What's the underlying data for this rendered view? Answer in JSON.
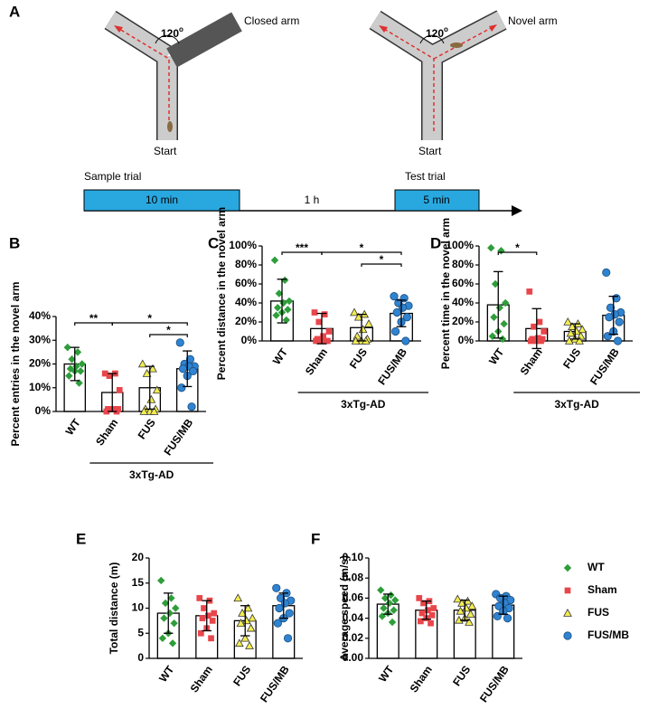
{
  "diagram": {
    "panel": "A",
    "angle": [
      "120",
      "o"
    ],
    "closed_arm": "Closed arm",
    "novel_arm": "Novel arm",
    "start": "Start",
    "sample_trial": "Sample trial",
    "test_trial": "Test trial",
    "sample_duration": "10 min",
    "interval": "1 h",
    "test_duration": "5 min"
  },
  "legend": [
    {
      "name": "WT",
      "color": "#2e9e3a",
      "marker": "diamond"
    },
    {
      "name": "Sham",
      "color": "#e8464b",
      "marker": "square"
    },
    {
      "name": "FUS",
      "color": "#f2ec50",
      "marker": "triangle"
    },
    {
      "name": "FUS/MB",
      "color": "#2f83d1",
      "marker": "circle"
    }
  ],
  "chart_data": [
    {
      "type": "bar",
      "panel": "B",
      "ylabel": "Percent entries in the novel arm",
      "group_label": "3xTg-AD",
      "categories": [
        "WT",
        "Sham",
        "FUS",
        "FUS/MB"
      ],
      "values": [
        20,
        8,
        10,
        18
      ],
      "errors": [
        7,
        8,
        9,
        7.5
      ],
      "points": [
        [
          27,
          25,
          22,
          20,
          19,
          18,
          17,
          17,
          15,
          12
        ],
        [
          16,
          16,
          15,
          9,
          1,
          1,
          1,
          1,
          0,
          0
        ],
        [
          20,
          18,
          16,
          9,
          5,
          1,
          1,
          0,
          0,
          0
        ],
        [
          29,
          22,
          20,
          19,
          19,
          18,
          17,
          15,
          10,
          2
        ]
      ],
      "ylim": [
        0,
        40
      ],
      "yticks": [
        {
          "value": 0,
          "label": "0%"
        },
        {
          "value": 10,
          "label": "10%"
        },
        {
          "value": 20,
          "label": "20%"
        },
        {
          "value": 30,
          "label": "30%"
        },
        {
          "value": 40,
          "label": "40%"
        }
      ],
      "significance": [
        {
          "from": 0,
          "to": 1,
          "label": "**"
        },
        {
          "from": 1,
          "to": 3,
          "label": "*"
        },
        {
          "from": 2,
          "to": 3,
          "label": "*"
        }
      ]
    },
    {
      "type": "bar",
      "panel": "C",
      "ylabel": "Percent distance in the novel arm",
      "group_label": "3xTg-AD",
      "categories": [
        "WT",
        "Sham",
        "FUS",
        "FUS/MB"
      ],
      "values": [
        42,
        13,
        14,
        29
      ],
      "errors": [
        23,
        16,
        14,
        14
      ],
      "points": [
        [
          85,
          64,
          50,
          42,
          40,
          35,
          33,
          30,
          27,
          22
        ],
        [
          30,
          28,
          20,
          10,
          5,
          2,
          0,
          0,
          0,
          0
        ],
        [
          30,
          28,
          25,
          18,
          12,
          5,
          2,
          0,
          0,
          0
        ],
        [
          47,
          45,
          40,
          37,
          35,
          30,
          25,
          20,
          10,
          0
        ]
      ],
      "ylim": [
        0,
        100
      ],
      "yticks": [
        {
          "value": 0,
          "label": "0%"
        },
        {
          "value": 20,
          "label": "20%"
        },
        {
          "value": 40,
          "label": "40%"
        },
        {
          "value": 60,
          "label": "60%"
        },
        {
          "value": 80,
          "label": "80%"
        },
        {
          "value": 100,
          "label": "100%"
        }
      ],
      "significance": [
        {
          "from": 0,
          "to": 1,
          "label": "***"
        },
        {
          "from": 1,
          "to": 3,
          "label": "*"
        },
        {
          "from": 2,
          "to": 3,
          "label": "*"
        }
      ]
    },
    {
      "type": "bar",
      "panel": "D",
      "ylabel": "Percent time in the novel arm",
      "group_label": "3xTg-AD",
      "categories": [
        "WT",
        "Sham",
        "FUS",
        "FUS/MB"
      ],
      "values": [
        38,
        13,
        10,
        27
      ],
      "errors": [
        35,
        21,
        8,
        20
      ],
      "points": [
        [
          98,
          95,
          60,
          40,
          35,
          25,
          18,
          10,
          5,
          2
        ],
        [
          52,
          20,
          15,
          10,
          3,
          2,
          2,
          0,
          0,
          0
        ],
        [
          20,
          18,
          15,
          12,
          10,
          8,
          5,
          2,
          0,
          0
        ],
        [
          72,
          45,
          35,
          30,
          28,
          25,
          20,
          10,
          5,
          0
        ]
      ],
      "ylim": [
        0,
        100
      ],
      "yticks": [
        {
          "value": 0,
          "label": "0%"
        },
        {
          "value": 20,
          "label": "20%"
        },
        {
          "value": 40,
          "label": "40%"
        },
        {
          "value": 60,
          "label": "60%"
        },
        {
          "value": 80,
          "label": "80%"
        },
        {
          "value": 100,
          "label": "100%"
        }
      ],
      "significance": [
        {
          "from": 0,
          "to": 1,
          "label": "*"
        }
      ]
    },
    {
      "type": "bar",
      "panel": "E",
      "ylabel": "Total distance (m)",
      "group_label": "3xTg-AD",
      "categories": [
        "WT",
        "Sham",
        "FUS",
        "FUS/MB"
      ],
      "values": [
        9,
        8.5,
        7.5,
        10.5
      ],
      "errors": [
        4,
        3,
        3,
        2.5
      ],
      "points": [
        [
          15.5,
          12,
          11,
          10,
          9,
          8,
          7,
          5,
          4,
          3
        ],
        [
          12,
          11.5,
          10,
          9,
          8.5,
          8,
          7.5,
          6,
          5,
          4
        ],
        [
          12,
          10,
          9,
          8,
          7.5,
          7,
          6,
          4,
          3,
          2.5
        ],
        [
          14,
          13,
          12,
          11.5,
          11,
          10,
          9,
          8,
          7,
          4
        ]
      ],
      "ylim": [
        0,
        20
      ],
      "yticks": [
        0,
        5,
        10,
        15,
        20
      ],
      "significance": []
    },
    {
      "type": "bar",
      "panel": "F",
      "ylabel": "Average speed (m/s)",
      "group_label": "3xTg-AD",
      "categories": [
        "WT",
        "Sham",
        "FUS",
        "FUS/MB"
      ],
      "values": [
        0.054,
        0.048,
        0.048,
        0.053
      ],
      "errors": [
        0.01,
        0.009,
        0.01,
        0.009
      ],
      "points": [
        [
          0.068,
          0.063,
          0.06,
          0.058,
          0.055,
          0.05,
          0.048,
          0.045,
          0.042,
          0.036
        ],
        [
          0.06,
          0.057,
          0.055,
          0.05,
          0.048,
          0.045,
          0.043,
          0.04,
          0.037,
          0.035
        ],
        [
          0.059,
          0.057,
          0.055,
          0.052,
          0.05,
          0.047,
          0.044,
          0.04,
          0.038,
          0.036
        ],
        [
          0.064,
          0.062,
          0.06,
          0.058,
          0.055,
          0.052,
          0.05,
          0.047,
          0.042,
          0.04
        ]
      ],
      "ylim": [
        0,
        0.1
      ],
      "yticks": [
        {
          "value": 0,
          "label": "0.00"
        },
        {
          "value": 0.02,
          "label": "0.02"
        },
        {
          "value": 0.04,
          "label": "0.04"
        },
        {
          "value": 0.06,
          "label": "0.06"
        },
        {
          "value": 0.08,
          "label": "0.08"
        },
        {
          "value": 0.1,
          "label": "0.10"
        }
      ],
      "significance": []
    }
  ]
}
